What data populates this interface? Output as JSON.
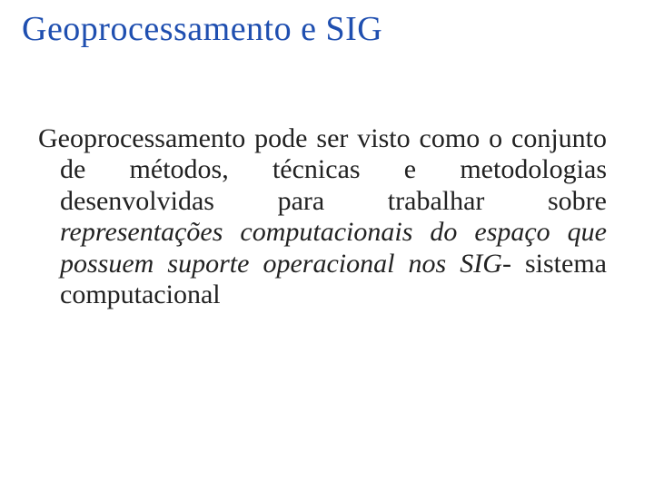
{
  "colors": {
    "title_color": "#1f4fb0",
    "body_color": "#222222",
    "background": "#ffffff"
  },
  "typography": {
    "title_fontsize_pt": 28,
    "body_fontsize_pt": 22,
    "font_family": "Georgia / serif",
    "body_align": "justify",
    "body_line_height": 1.15
  },
  "title": "Geoprocessamento e SIG",
  "body": {
    "runs": [
      {
        "text": "Geoprocessamento pode ser visto como o conjunto de métodos, técnicas e metodologias desenvolvidas para trabalhar sobre ",
        "italic": false
      },
      {
        "text": "representações computacionais do espaço que possuem suporte operacional nos SIG",
        "italic": true
      },
      {
        "text": "- sistema computacional",
        "italic": false
      }
    ]
  }
}
